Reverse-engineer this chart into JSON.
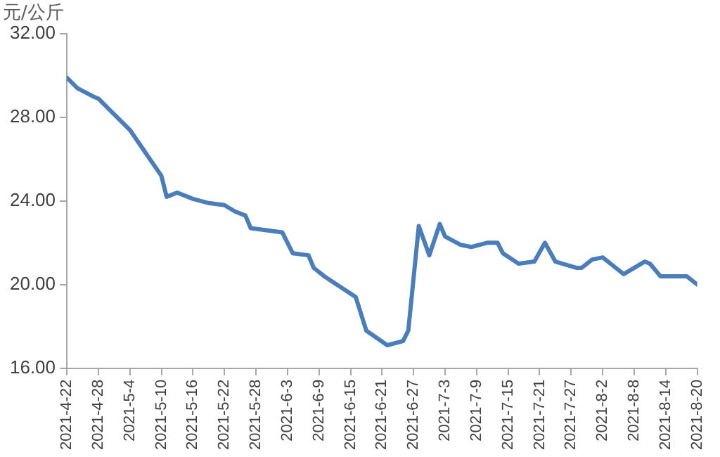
{
  "chart_data": {
    "type": "line",
    "ylabel": "元/公斤",
    "x": [
      "2021-04-22",
      "2021-04-24",
      "2021-04-27",
      "2021-04-28",
      "2021-04-30",
      "2021-05-04",
      "2021-05-07",
      "2021-05-10",
      "2021-05-11",
      "2021-05-13",
      "2021-05-16",
      "2021-05-19",
      "2021-05-22",
      "2021-05-24",
      "2021-05-26",
      "2021-05-27",
      "2021-06-02",
      "2021-06-04",
      "2021-06-07",
      "2021-06-08",
      "2021-06-10",
      "2021-06-13",
      "2021-06-16",
      "2021-06-18",
      "2021-06-22",
      "2021-06-25",
      "2021-06-26",
      "2021-06-28",
      "2021-06-30",
      "2021-07-02",
      "2021-07-03",
      "2021-07-06",
      "2021-07-08",
      "2021-07-11",
      "2021-07-13",
      "2021-07-14",
      "2021-07-17",
      "2021-07-20",
      "2021-07-22",
      "2021-07-24",
      "2021-07-28",
      "2021-07-29",
      "2021-07-31",
      "2021-08-02",
      "2021-08-04",
      "2021-08-06",
      "2021-08-10",
      "2021-08-11",
      "2021-08-13",
      "2021-08-18",
      "2021-08-20"
    ],
    "series": [
      {
        "color": "#4a7ebb",
        "values": [
          29.9,
          29.4,
          29.0,
          28.9,
          28.4,
          27.4,
          26.3,
          25.2,
          24.2,
          24.4,
          24.1,
          23.9,
          23.8,
          23.5,
          23.3,
          22.7,
          22.5,
          21.5,
          21.4,
          20.8,
          20.4,
          19.9,
          19.4,
          17.8,
          17.1,
          17.3,
          17.8,
          22.8,
          21.4,
          22.9,
          22.3,
          21.9,
          21.8,
          22.0,
          22.0,
          21.5,
          21.0,
          21.1,
          22.0,
          21.1,
          20.8,
          20.8,
          21.2,
          21.3,
          20.9,
          20.5,
          21.1,
          21.0,
          20.4,
          20.4,
          20.0
        ]
      }
    ],
    "xlim": [
      "2021-04-22",
      "2021-08-20"
    ],
    "xticks": [
      {
        "value": "2021-04-22",
        "label": "2021-4-22"
      },
      {
        "value": "2021-04-28",
        "label": "2021-4-28"
      },
      {
        "value": "2021-05-04",
        "label": "2021-5-4"
      },
      {
        "value": "2021-05-10",
        "label": "2021-5-10"
      },
      {
        "value": "2021-05-16",
        "label": "2021-5-16"
      },
      {
        "value": "2021-05-22",
        "label": "2021-5-22"
      },
      {
        "value": "2021-05-28",
        "label": "2021-5-28"
      },
      {
        "value": "2021-06-03",
        "label": "2021-6-3"
      },
      {
        "value": "2021-06-09",
        "label": "2021-6-9"
      },
      {
        "value": "2021-06-15",
        "label": "2021-6-15"
      },
      {
        "value": "2021-06-21",
        "label": "2021-6-21"
      },
      {
        "value": "2021-06-27",
        "label": "2021-6-27"
      },
      {
        "value": "2021-07-03",
        "label": "2021-7-3"
      },
      {
        "value": "2021-07-09",
        "label": "2021-7-9"
      },
      {
        "value": "2021-07-15",
        "label": "2021-7-15"
      },
      {
        "value": "2021-07-21",
        "label": "2021-7-21"
      },
      {
        "value": "2021-07-27",
        "label": "2021-7-27"
      },
      {
        "value": "2021-08-02",
        "label": "2021-8-2"
      },
      {
        "value": "2021-08-08",
        "label": "2021-8-8"
      },
      {
        "value": "2021-08-14",
        "label": "2021-8-14"
      },
      {
        "value": "2021-08-20",
        "label": "2021-8-20"
      }
    ],
    "ylim": [
      16,
      32
    ],
    "yticks": [
      {
        "value": 16,
        "label": "16.00"
      },
      {
        "value": 20,
        "label": "20.00"
      },
      {
        "value": 24,
        "label": "24.00"
      },
      {
        "value": 28,
        "label": "28.00"
      },
      {
        "value": 32,
        "label": "32.00"
      }
    ],
    "grid": false,
    "legend": false,
    "marker": "none",
    "line_style": "solid"
  }
}
